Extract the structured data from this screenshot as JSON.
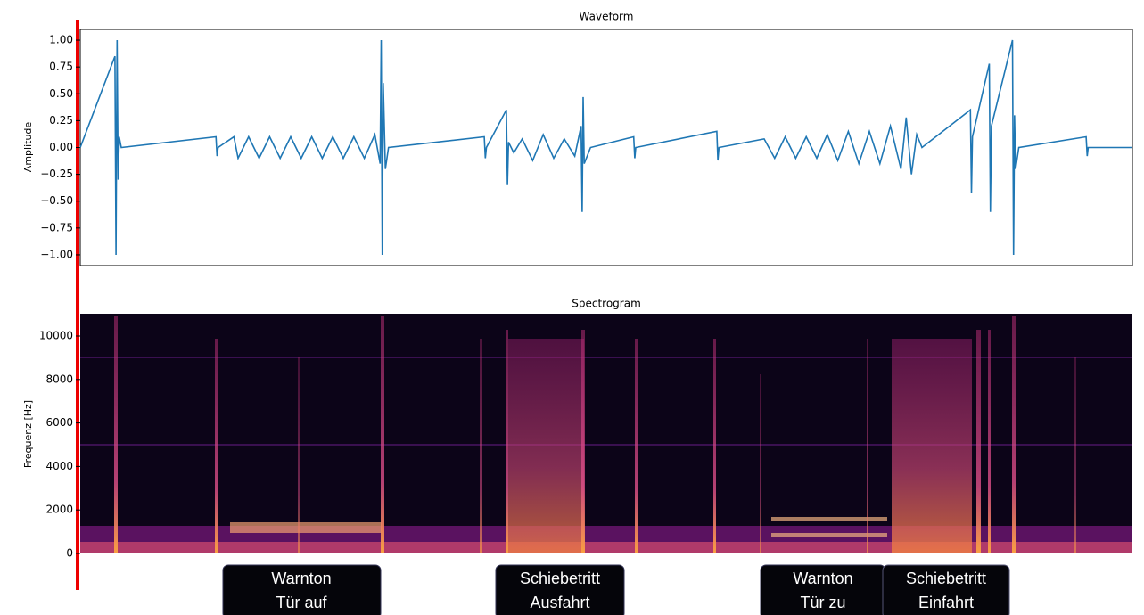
{
  "chart_data": [
    {
      "type": "line",
      "title": "Waveform",
      "ylabel": "Amplitude",
      "color": "#1f77b4",
      "x": [
        0,
        3.3,
        3.4,
        3.5,
        3.6,
        3.7,
        3.9,
        12.9,
        13.0,
        13.1,
        14.6,
        15,
        16,
        17,
        18,
        19,
        20,
        21,
        22,
        23,
        24,
        25,
        26,
        27,
        28,
        28.5,
        28.6,
        28.7,
        28.8,
        29.0,
        29.3,
        38.4,
        38.5,
        38.6,
        40.5,
        40.6,
        40.7,
        41.2,
        42,
        43,
        44,
        45,
        46,
        47,
        47.6,
        47.7,
        47.8,
        47.9,
        48.5,
        52.6,
        52.7,
        52.8,
        60.5,
        60.6,
        60.7,
        65,
        66,
        67,
        68,
        69,
        70,
        71,
        72,
        73,
        74,
        75,
        76,
        77,
        78,
        78.5,
        79,
        79.5,
        80,
        84.6,
        84.7,
        84.8,
        86.4,
        86.5,
        86.6,
        88.6,
        88.7,
        88.8,
        88.9,
        89.2,
        95.6,
        95.7,
        95.8,
        100
      ],
      "values": [
        0,
        0.85,
        -1.0,
        1.0,
        -0.3,
        0.1,
        0,
        0.1,
        -0.08,
        0,
        0.1,
        -0.1,
        0.1,
        -0.1,
        0.1,
        -0.1,
        0.1,
        -0.1,
        0.1,
        -0.1,
        0.1,
        -0.1,
        0.1,
        -0.1,
        0.12,
        -0.15,
        1.0,
        -1.0,
        0.6,
        -0.2,
        0,
        0.1,
        -0.1,
        0,
        0.35,
        -0.35,
        0.05,
        -0.05,
        0.08,
        -0.12,
        0.12,
        -0.1,
        0.08,
        -0.08,
        0.2,
        -0.6,
        0.47,
        -0.15,
        0,
        0.1,
        -0.1,
        0,
        0.15,
        -0.12,
        0,
        0.08,
        -0.1,
        0.1,
        -0.1,
        0.1,
        -0.1,
        0.12,
        -0.12,
        0.15,
        -0.15,
        0.15,
        -0.15,
        0.2,
        -0.2,
        0.28,
        -0.25,
        0.12,
        0,
        0.35,
        -0.42,
        0.1,
        0.78,
        -0.6,
        0.2,
        1.0,
        -1.0,
        0.3,
        -0.2,
        0,
        0.1,
        -0.08,
        0,
        0
      ],
      "ylim": [
        -1.1,
        1.1
      ],
      "yticks": [
        {
          "value": 1,
          "label": "1.00"
        },
        {
          "value": 0.75,
          "label": "0.75"
        },
        {
          "value": 0.5,
          "label": "0.50"
        },
        {
          "value": 0.25,
          "label": "0.25"
        },
        {
          "value": 0,
          "label": "0.00"
        },
        {
          "value": -0.25,
          "label": "−0.25"
        },
        {
          "value": -0.5,
          "label": "−0.50"
        },
        {
          "value": -0.75,
          "label": "−0.75"
        },
        {
          "value": -1,
          "label": "−1.00"
        }
      ]
    },
    {
      "type": "spectrogram",
      "title": "Spectrogram",
      "ylabel": "Frequenz [Hz]",
      "ylim": [
        0,
        11025
      ],
      "yticks": [
        0,
        2000,
        4000,
        6000,
        8000,
        10000
      ]
    }
  ],
  "annotations": [
    [
      "Warnton",
      "Tür auf"
    ],
    [
      "Schiebetritt",
      "Ausfahrt"
    ],
    [
      "Warnton",
      "Tür zu"
    ],
    [
      "Schiebetritt",
      "Einfahrt"
    ]
  ]
}
